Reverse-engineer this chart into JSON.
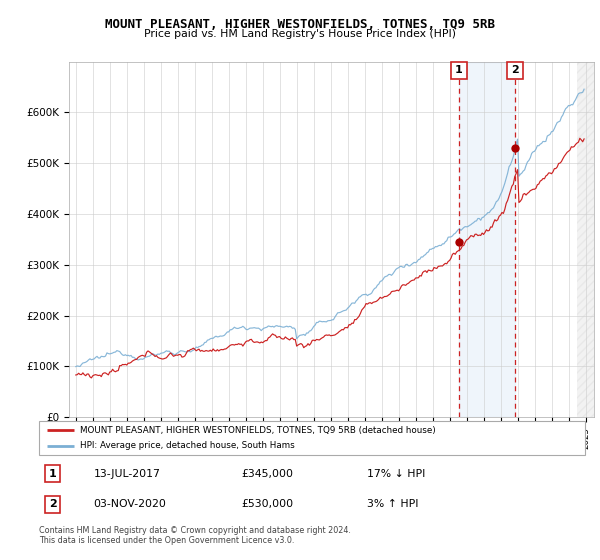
{
  "title": "MOUNT PLEASANT, HIGHER WESTONFIELDS, TOTNES, TQ9 5RB",
  "subtitle": "Price paid vs. HM Land Registry's House Price Index (HPI)",
  "hpi_color": "#7bafd4",
  "price_color": "#cc2222",
  "sale1_date": "13-JUL-2017",
  "sale1_price": "£345,000",
  "sale1_hpi": "17% ↓ HPI",
  "sale2_date": "03-NOV-2020",
  "sale2_price": "£530,000",
  "sale2_hpi": "3% ↑ HPI",
  "legend_label1": "MOUNT PLEASANT, HIGHER WESTONFIELDS, TOTNES, TQ9 5RB (detached house)",
  "legend_label2": "HPI: Average price, detached house, South Hams",
  "footer1": "Contains HM Land Registry data © Crown copyright and database right 2024.",
  "footer2": "This data is licensed under the Open Government Licence v3.0.",
  "ylim_max": 700000,
  "sale1_year": 2017.54,
  "sale1_val": 345000,
  "sale2_year": 2020.84,
  "sale2_val": 530000
}
